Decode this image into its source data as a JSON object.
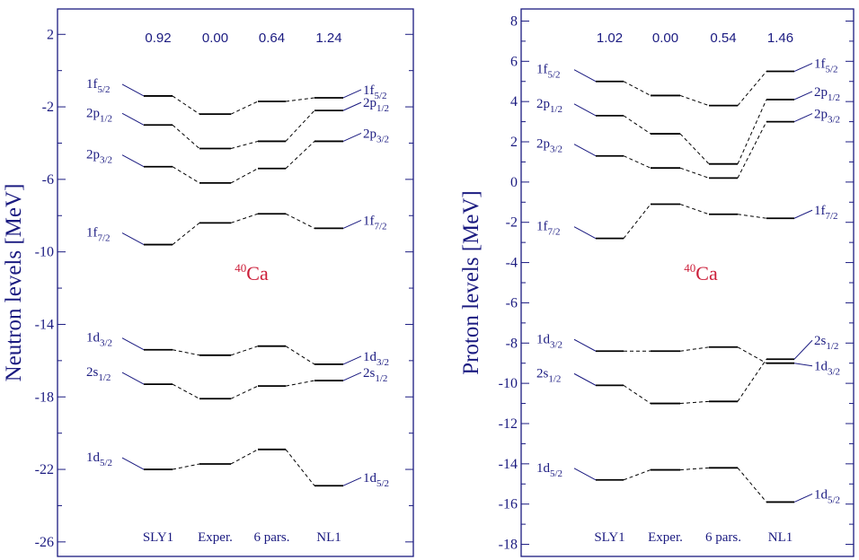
{
  "chart_data": [
    {
      "type": "level-scheme",
      "nucleus": {
        "mass": "40",
        "symbol": "Ca"
      },
      "ylabel": "Neutron levels [MeV]",
      "ylim": [
        -26.8,
        3.4
      ],
      "yticks": [
        2,
        -2,
        -6,
        -10,
        -14,
        -18,
        -22,
        -26
      ],
      "columns": [
        "SLY1",
        "Exper.",
        "6 pars.",
        "NL1"
      ],
      "chi2": [
        "0.92",
        "0.00",
        "0.64",
        "1.24"
      ],
      "levels": [
        {
          "l": "1f",
          "j": "5/2",
          "values": [
            -1.4,
            -2.4,
            -1.7,
            -1.5
          ],
          "left_offset": 0,
          "right_offset": 0
        },
        {
          "l": "2p",
          "j": "1/2",
          "values": [
            -3.0,
            -4.3,
            -3.9,
            -2.2
          ],
          "left_offset": 0,
          "right_offset": 0
        },
        {
          "l": "2p",
          "j": "3/2",
          "values": [
            -5.3,
            -6.2,
            -5.4,
            -3.9
          ],
          "left_offset": 0,
          "right_offset": 0
        },
        {
          "l": "1f",
          "j": "7/2",
          "values": [
            -9.6,
            -8.4,
            -7.9,
            -8.7
          ],
          "left_offset": 0,
          "right_offset": 0
        },
        {
          "l": "1d",
          "j": "3/2",
          "values": [
            -15.4,
            -15.7,
            -15.2,
            -16.2
          ],
          "left_offset": 0,
          "right_offset": 0
        },
        {
          "l": "2s",
          "j": "1/2",
          "values": [
            -17.3,
            -18.1,
            -17.4,
            -17.1
          ],
          "left_offset": 0,
          "right_offset": 0
        },
        {
          "l": "1d",
          "j": "5/2",
          "values": [
            -22.0,
            -21.7,
            -20.9,
            -22.9
          ],
          "left_offset": 0,
          "right_offset": 0
        }
      ]
    },
    {
      "type": "level-scheme",
      "nucleus": {
        "mass": "40",
        "symbol": "Ca"
      },
      "ylabel": "Proton levels [MeV]",
      "ylim": [
        -18.6,
        8.6
      ],
      "yticks": [
        8,
        6,
        4,
        2,
        0,
        -2,
        -4,
        -6,
        -8,
        -10,
        -12,
        -14,
        -16,
        -18
      ],
      "columns": [
        "SLY1",
        "Exper.",
        "6 pars.",
        "NL1"
      ],
      "chi2": [
        "1.02",
        "0.00",
        "0.54",
        "1.46"
      ],
      "levels": [
        {
          "l": "1f",
          "j": "5/2",
          "values": [
            5.0,
            4.3,
            3.8,
            5.5
          ],
          "left_offset": 0,
          "right_offset": 0
        },
        {
          "l": "2p",
          "j": "1/2",
          "values": [
            3.3,
            2.4,
            0.9,
            4.1
          ],
          "left_offset": 0,
          "right_offset": 0
        },
        {
          "l": "2p",
          "j": "3/2",
          "values": [
            1.3,
            0.7,
            0.2,
            3.0
          ],
          "left_offset": 0,
          "right_offset": 0
        },
        {
          "l": "1f",
          "j": "7/2",
          "values": [
            -2.8,
            -1.1,
            -1.6,
            -1.8
          ],
          "left_offset": 0,
          "right_offset": 0
        },
        {
          "l": "1d",
          "j": "3/2",
          "values": [
            -8.4,
            -8.4,
            -8.2,
            -9.0
          ],
          "left_offset": 0,
          "right_offset": 1
        },
        {
          "l": "2s",
          "j": "1/2",
          "values": [
            -10.1,
            -11.0,
            -10.9,
            -8.8
          ],
          "left_offset": 0,
          "right_offset": -1
        },
        {
          "l": "1d",
          "j": "5/2",
          "values": [
            -14.8,
            -14.3,
            -14.2,
            -15.9
          ],
          "left_offset": 0,
          "right_offset": 0
        }
      ]
    }
  ]
}
